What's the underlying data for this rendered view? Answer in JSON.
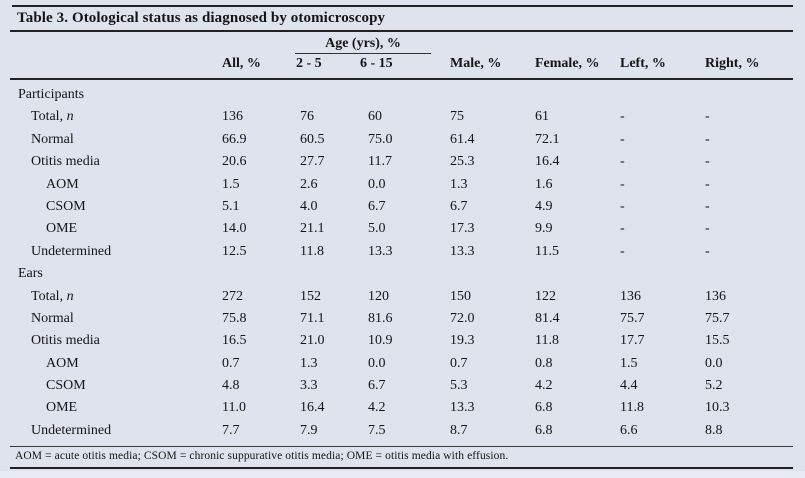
{
  "title": "Table 3. Otological status as diagnosed by otomicroscopy",
  "header": {
    "age_spanner": "Age (yrs), %",
    "columns": [
      "All, %",
      "2 - 5",
      "6 - 15",
      "Male, %",
      "Female, %",
      "Left, %",
      "Right, %"
    ]
  },
  "sections": [
    {
      "name": "Participants",
      "rows": [
        {
          "label": "Total, n",
          "italic_n": true,
          "indent": 1,
          "values": [
            "136",
            "76",
            "60",
            "75",
            "61",
            "-",
            "-"
          ]
        },
        {
          "label": "Normal",
          "indent": 1,
          "values": [
            "66.9",
            "60.5",
            "75.0",
            "61.4",
            "72.1",
            "-",
            "-"
          ]
        },
        {
          "label": "Otitis media",
          "indent": 1,
          "values": [
            "20.6",
            "27.7",
            "11.7",
            "25.3",
            "16.4",
            "-",
            "-"
          ]
        },
        {
          "label": "AOM",
          "indent": 2,
          "values": [
            "1.5",
            "2.6",
            "0.0",
            "1.3",
            "1.6",
            "-",
            "-"
          ]
        },
        {
          "label": "CSOM",
          "indent": 2,
          "values": [
            "5.1",
            "4.0",
            "6.7",
            "6.7",
            "4.9",
            "-",
            "-"
          ]
        },
        {
          "label": "OME",
          "indent": 2,
          "values": [
            "14.0",
            "21.1",
            "5.0",
            "17.3",
            "9.9",
            "-",
            "-"
          ]
        },
        {
          "label": "Undetermined",
          "indent": 1,
          "values": [
            "12.5",
            "11.8",
            "13.3",
            "13.3",
            "11.5",
            "-",
            "-"
          ]
        }
      ]
    },
    {
      "name": "Ears",
      "rows": [
        {
          "label": "Total, n",
          "italic_n": true,
          "indent": 1,
          "values": [
            "272",
            "152",
            "120",
            "150",
            "122",
            "136",
            "136"
          ]
        },
        {
          "label": "Normal",
          "indent": 1,
          "values": [
            "75.8",
            "71.1",
            "81.6",
            "72.0",
            "81.4",
            "75.7",
            "75.7"
          ]
        },
        {
          "label": "Otitis media",
          "indent": 1,
          "values": [
            "16.5",
            "21.0",
            "10.9",
            "19.3",
            "11.8",
            "17.7",
            "15.5"
          ]
        },
        {
          "label": "AOM",
          "indent": 2,
          "values": [
            "0.7",
            "1.3",
            "0.0",
            "0.7",
            "0.8",
            "1.5",
            "0.0"
          ]
        },
        {
          "label": "CSOM",
          "indent": 2,
          "values": [
            "4.8",
            "3.3",
            "6.7",
            "5.3",
            "4.2",
            "4.4",
            "5.2"
          ]
        },
        {
          "label": "OME",
          "indent": 2,
          "values": [
            "11.0",
            "16.4",
            "4.2",
            "13.3",
            "6.8",
            "11.8",
            "10.3"
          ]
        },
        {
          "label": "Undetermined",
          "indent": 1,
          "values": [
            "7.7",
            "7.9",
            "7.5",
            "8.7",
            "6.8",
            "6.6",
            "8.8"
          ]
        }
      ]
    }
  ],
  "footnote": "AOM = acute otitis media; CSOM = chronic suppurative otitis media; OME = otitis media with effusion.",
  "colors": {
    "background": "#dfe3ee",
    "text": "#151515",
    "rule": "#222222"
  }
}
